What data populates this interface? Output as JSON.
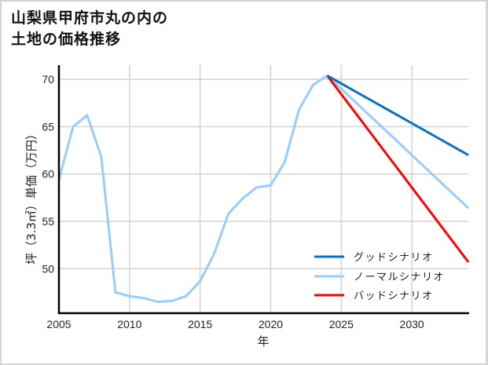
{
  "title": {
    "line1": "山梨県甲府市丸の内の",
    "line2": "土地の価格推移"
  },
  "axes": {
    "xlabel": "年",
    "ylabel": "坪（3.3㎡）単価（万円）",
    "xticks": [
      "2005",
      "2010",
      "2015",
      "2020",
      "2025",
      "2030"
    ],
    "yticks": [
      "50",
      "55",
      "60",
      "65",
      "70"
    ]
  },
  "legend": {
    "items": [
      {
        "label": "グッドシナリオ",
        "color": "#0b6fc4"
      },
      {
        "label": "ノーマルシナリオ",
        "color": "#99ccff"
      },
      {
        "label": "バッドシナリオ",
        "color": "#ff0000"
      }
    ]
  },
  "chart_data": {
    "type": "line",
    "title": "山梨県甲府市丸の内の土地の価格推移",
    "xlabel": "年",
    "ylabel": "坪（3.3㎡）単価（万円）",
    "xlim": [
      2005,
      2034
    ],
    "ylim": [
      45.3,
      71.5
    ],
    "grid": true,
    "legend_position": "lower right",
    "x": [
      2005,
      2006,
      2007,
      2008,
      2009,
      2010,
      2011,
      2012,
      2013,
      2014,
      2015,
      2016,
      2017,
      2018,
      2019,
      2020,
      2021,
      2022,
      2023,
      2024
    ],
    "series": [
      {
        "name": "ノーマルシナリオ (実績)",
        "color": "#99ccff",
        "x": [
          2005,
          2006,
          2007,
          2008,
          2009,
          2010,
          2011,
          2012,
          2013,
          2014,
          2015,
          2016,
          2017,
          2018,
          2019,
          2020,
          2021,
          2022,
          2023,
          2024
        ],
        "values": [
          59.4,
          65.0,
          66.2,
          61.8,
          47.5,
          47.1,
          46.9,
          46.5,
          46.6,
          47.1,
          48.7,
          51.6,
          55.8,
          57.4,
          58.6,
          58.8,
          61.3,
          66.8,
          69.4,
          70.4
        ]
      },
      {
        "name": "グッドシナリオ",
        "color": "#0b6fc4",
        "x": [
          2024,
          2034
        ],
        "values": [
          70.4,
          62.0
        ]
      },
      {
        "name": "ノーマルシナリオ",
        "color": "#99ccff",
        "x": [
          2024,
          2034
        ],
        "values": [
          70.4,
          56.4
        ]
      },
      {
        "name": "バッドシナリオ",
        "color": "#ff0000",
        "x": [
          2024,
          2034
        ],
        "values": [
          70.4,
          50.7
        ]
      }
    ]
  }
}
